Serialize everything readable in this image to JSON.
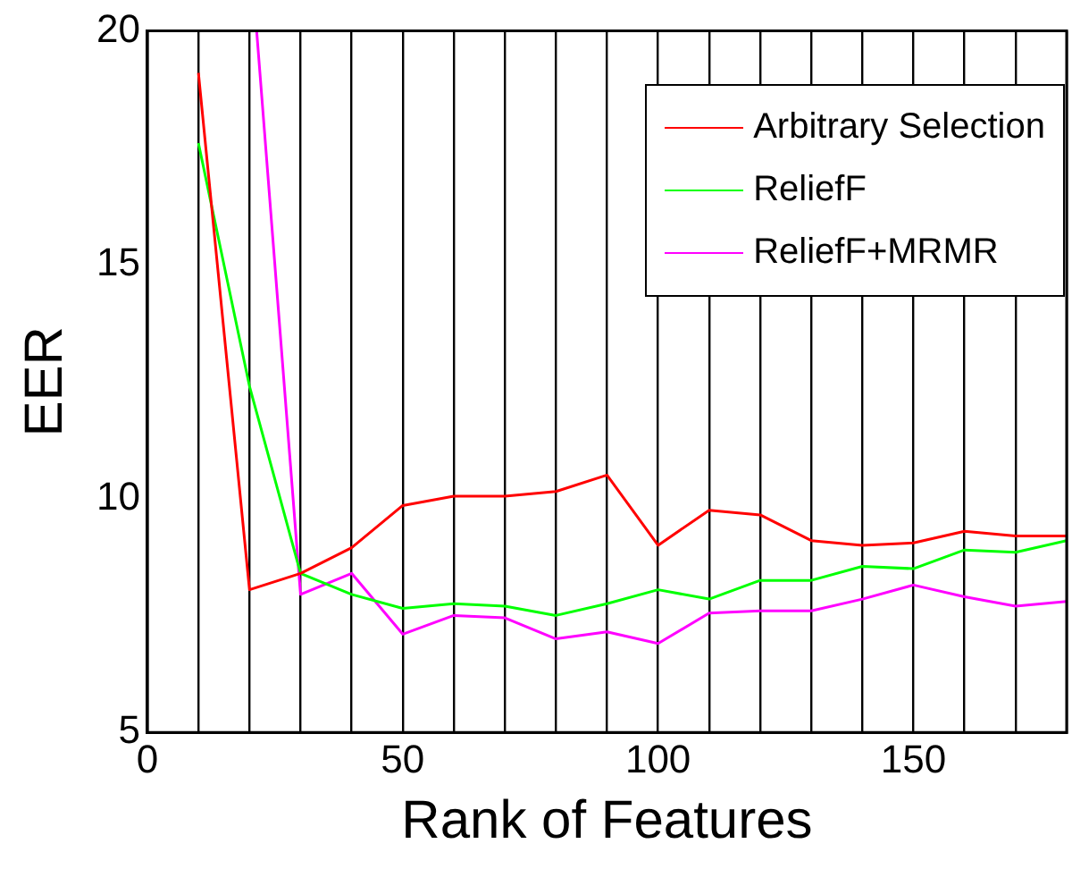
{
  "chart_data": {
    "type": "line",
    "xlabel": "Rank of Features",
    "ylabel": "EER",
    "x": [
      10,
      20,
      30,
      40,
      50,
      60,
      70,
      80,
      90,
      100,
      110,
      120,
      130,
      140,
      150,
      160,
      170,
      180
    ],
    "series": [
      {
        "name": "Arbitrary Selection",
        "color": "#ff0000",
        "values": [
          19.1,
          8.05,
          8.4,
          8.95,
          9.85,
          10.05,
          10.05,
          10.15,
          10.5,
          9.0,
          9.75,
          9.65,
          9.1,
          9.0,
          9.05,
          9.3,
          9.2,
          9.2
        ]
      },
      {
        "name": "ReliefF",
        "color": "#00ff00",
        "values": [
          17.6,
          12.4,
          8.4,
          7.95,
          7.65,
          7.75,
          7.7,
          7.5,
          7.75,
          8.05,
          7.85,
          8.25,
          8.25,
          8.55,
          8.5,
          8.9,
          8.85,
          9.1
        ]
      },
      {
        "name": "ReliefF+MRMR",
        "color": "#ff00ff",
        "x": [
          21.4,
          30,
          40,
          50,
          60,
          70,
          80,
          90,
          100,
          110,
          120,
          130,
          140,
          150,
          160,
          170,
          180
        ],
        "values": [
          20,
          7.95,
          8.4,
          7.1,
          7.5,
          7.45,
          7.0,
          7.15,
          6.9,
          7.55,
          7.6,
          7.6,
          7.85,
          8.15,
          7.9,
          7.7,
          7.8
        ]
      }
    ],
    "xlim": [
      0,
      180
    ],
    "ylim": [
      5,
      20
    ],
    "xticks": [
      0,
      {
        "value": 10,
        "label": null
      },
      {
        "value": 20,
        "label": null
      },
      {
        "value": 30,
        "label": null
      },
      {
        "value": 40,
        "label": null
      },
      50,
      {
        "value": 60,
        "label": null
      },
      {
        "value": 70,
        "label": null
      },
      {
        "value": 80,
        "label": null
      },
      {
        "value": 90,
        "label": null
      },
      100,
      {
        "value": 110,
        "label": null
      },
      {
        "value": 120,
        "label": null
      },
      {
        "value": 130,
        "label": null
      },
      {
        "value": 140,
        "label": null
      },
      150,
      {
        "value": 160,
        "label": null
      },
      {
        "value": 170,
        "label": null
      },
      {
        "value": 180,
        "label": null
      }
    ],
    "yticks": [
      5,
      10,
      15,
      20
    ],
    "grid": "x",
    "legend": "top right",
    "marker": "none",
    "line_style": "solid"
  }
}
